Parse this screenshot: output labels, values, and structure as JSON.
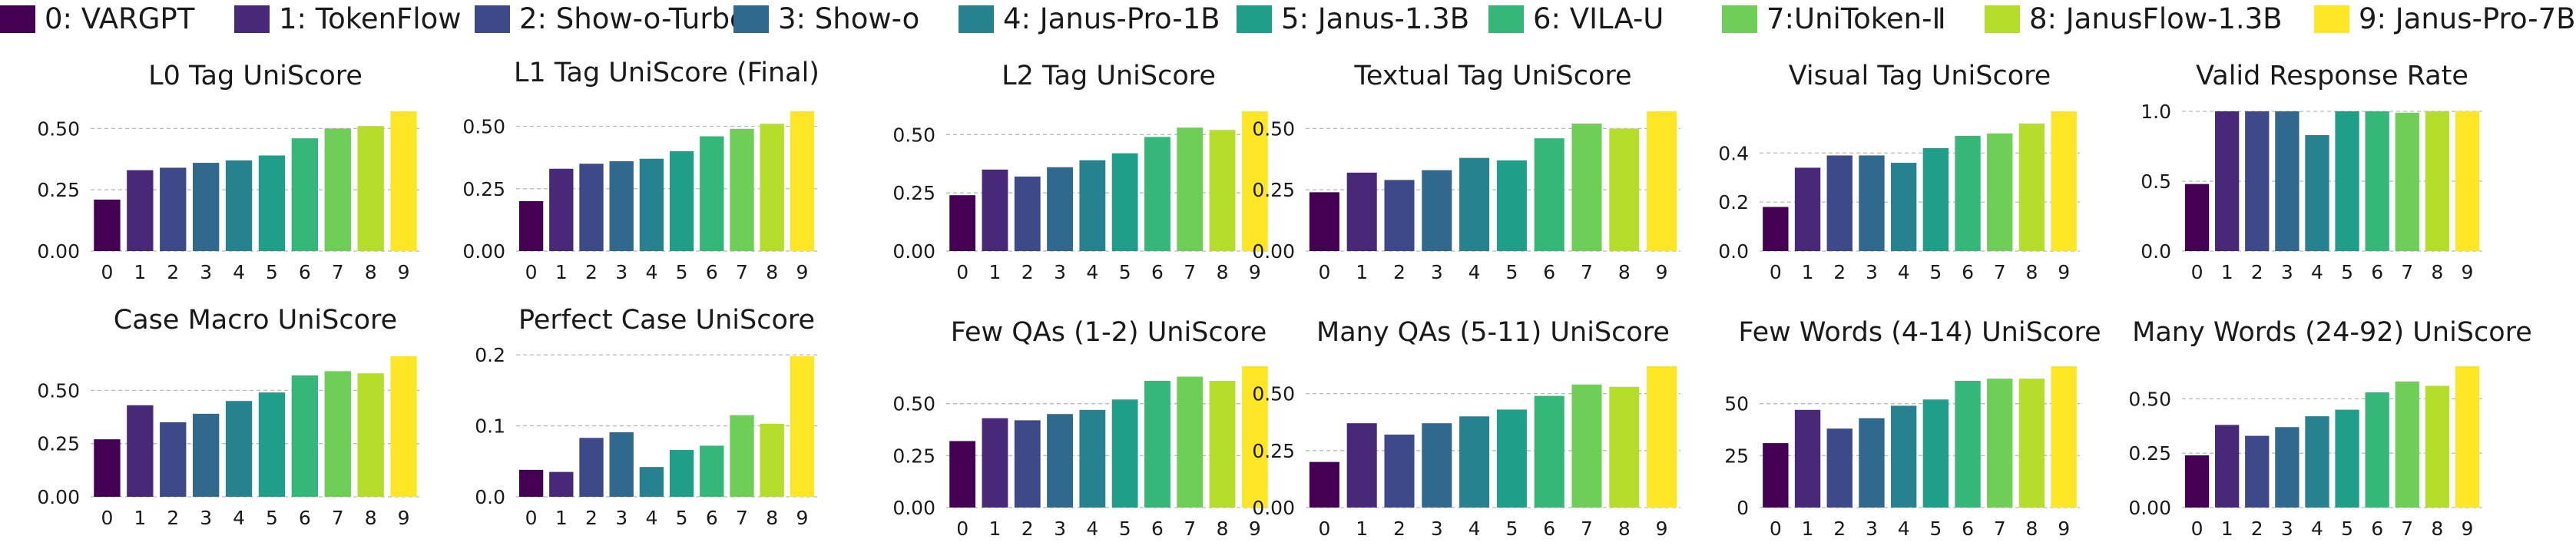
{
  "colors": [
    "#440154",
    "#482878",
    "#3e4989",
    "#31688e",
    "#26828e",
    "#1f9e89",
    "#35b779",
    "#6ece58",
    "#b5de2b",
    "#fde725"
  ],
  "legend": [
    {
      "label": "0: VARGPT"
    },
    {
      "label": "1: TokenFlow"
    },
    {
      "label": "2: Show-o-Turbo"
    },
    {
      "label": "3: Show-o"
    },
    {
      "label": "4: Janus-Pro-1B"
    },
    {
      "label": "5: Janus-1.3B"
    },
    {
      "label": "6: VILA-U"
    },
    {
      "label": "7:UniToken-Ⅱ"
    },
    {
      "label": "8: JanusFlow-1.3B"
    },
    {
      "label": "9: Janus-Pro-7B"
    }
  ],
  "chart_data": [
    {
      "type": "bar",
      "title": "L0 Tag UniScore",
      "categories": [
        "0",
        "1",
        "2",
        "3",
        "4",
        "5",
        "6",
        "7",
        "8",
        "9"
      ],
      "values": [
        0.21,
        0.33,
        0.34,
        0.36,
        0.37,
        0.39,
        0.46,
        0.5,
        0.51,
        0.57
      ],
      "yticks": [
        "0.00",
        "0.25",
        "0.50"
      ],
      "ytick_values": [
        0,
        0.25,
        0.5
      ],
      "ylim": [
        0,
        0.57
      ],
      "grid": true
    },
    {
      "type": "bar",
      "title": "L1 Tag UniScore (Final)",
      "categories": [
        "0",
        "1",
        "2",
        "3",
        "4",
        "5",
        "6",
        "7",
        "8",
        "9"
      ],
      "values": [
        0.2,
        0.33,
        0.35,
        0.36,
        0.37,
        0.4,
        0.46,
        0.49,
        0.51,
        0.56
      ],
      "yticks": [
        "0.00",
        "0.25",
        "0.50"
      ],
      "ytick_values": [
        0,
        0.25,
        0.5
      ],
      "ylim": [
        0,
        0.56
      ],
      "grid": true
    },
    {
      "type": "bar",
      "title": "L2 Tag UniScore",
      "categories": [
        "0",
        "1",
        "2",
        "3",
        "4",
        "5",
        "6",
        "7",
        "8",
        "9"
      ],
      "values": [
        0.24,
        0.35,
        0.32,
        0.36,
        0.39,
        0.42,
        0.49,
        0.53,
        0.52,
        0.6
      ],
      "yticks": [
        "0.00",
        "0.25",
        "0.50"
      ],
      "ytick_values": [
        0,
        0.25,
        0.5
      ],
      "ylim": [
        0,
        0.6
      ],
      "grid": true
    },
    {
      "type": "bar",
      "title": "Textual Tag UniScore",
      "categories": [
        "0",
        "1",
        "2",
        "3",
        "4",
        "5",
        "6",
        "7",
        "8",
        "9"
      ],
      "values": [
        0.24,
        0.32,
        0.29,
        0.33,
        0.38,
        0.37,
        0.46,
        0.52,
        0.5,
        0.57
      ],
      "yticks": [
        "0.00",
        "0.25",
        "0.50"
      ],
      "ytick_values": [
        0,
        0.25,
        0.5
      ],
      "ylim": [
        0,
        0.57
      ],
      "grid": true
    },
    {
      "type": "bar",
      "title": "Visual Tag UniScore",
      "categories": [
        "0",
        "1",
        "2",
        "3",
        "4",
        "5",
        "6",
        "7",
        "8",
        "9"
      ],
      "values": [
        0.18,
        0.34,
        0.39,
        0.39,
        0.36,
        0.42,
        0.47,
        0.48,
        0.52,
        0.57
      ],
      "yticks": [
        "0.0",
        "0.2",
        "0.4"
      ],
      "ytick_values": [
        0,
        0.2,
        0.4
      ],
      "ylim": [
        0,
        0.57
      ],
      "grid": true
    },
    {
      "type": "bar",
      "title": "Valid Response Rate",
      "categories": [
        "0",
        "1",
        "2",
        "3",
        "4",
        "5",
        "6",
        "7",
        "8",
        "9"
      ],
      "values": [
        0.48,
        1.0,
        1.0,
        1.0,
        0.83,
        1.0,
        1.0,
        0.99,
        1.0,
        1.0
      ],
      "yticks": [
        "0.0",
        "0.5",
        "1.0"
      ],
      "ytick_values": [
        0,
        0.5,
        1.0
      ],
      "ylim": [
        0,
        1.0
      ],
      "grid": true
    },
    {
      "type": "bar",
      "title": "Case Macro UniScore",
      "categories": [
        "0",
        "1",
        "2",
        "3",
        "4",
        "5",
        "6",
        "7",
        "8",
        "9"
      ],
      "values": [
        0.27,
        0.43,
        0.35,
        0.39,
        0.45,
        0.49,
        0.57,
        0.59,
        0.58,
        0.66
      ],
      "yticks": [
        "0.00",
        "0.25",
        "0.50"
      ],
      "ytick_values": [
        0,
        0.25,
        0.5
      ],
      "ylim": [
        0,
        0.66
      ],
      "grid": true
    },
    {
      "type": "bar",
      "title": "Perfect Case UniScore",
      "categories": [
        "0",
        "1",
        "2",
        "3",
        "4",
        "5",
        "6",
        "7",
        "8",
        "9"
      ],
      "values": [
        0.038,
        0.035,
        0.083,
        0.091,
        0.042,
        0.066,
        0.072,
        0.115,
        0.103,
        0.198
      ],
      "yticks": [
        "0.0",
        "0.1",
        "0.2"
      ],
      "ytick_values": [
        0,
        0.1,
        0.2
      ],
      "ylim": [
        0,
        0.198
      ],
      "grid": true
    },
    {
      "type": "bar",
      "title": "Few QAs (1-2) UniScore",
      "categories": [
        "0",
        "1",
        "2",
        "3",
        "4",
        "5",
        "6",
        "7",
        "8",
        "9"
      ],
      "values": [
        0.32,
        0.43,
        0.42,
        0.45,
        0.47,
        0.52,
        0.61,
        0.63,
        0.61,
        0.68
      ],
      "yticks": [
        "0.00",
        "0.25",
        "0.50"
      ],
      "ytick_values": [
        0,
        0.25,
        0.5
      ],
      "ylim": [
        0,
        0.68
      ],
      "grid": true
    },
    {
      "type": "bar",
      "title": "Many QAs (5-11) UniScore",
      "categories": [
        "0",
        "1",
        "2",
        "3",
        "4",
        "5",
        "6",
        "7",
        "8",
        "9"
      ],
      "values": [
        0.2,
        0.37,
        0.32,
        0.37,
        0.4,
        0.43,
        0.49,
        0.54,
        0.53,
        0.62
      ],
      "yticks": [
        "0.00",
        "0.25",
        "0.50"
      ],
      "ytick_values": [
        0,
        0.25,
        0.5
      ],
      "ylim": [
        0,
        0.62
      ],
      "grid": true
    },
    {
      "type": "bar",
      "title": "Few Words (4-14) UniScore",
      "categories": [
        "0",
        "1",
        "2",
        "3",
        "4",
        "5",
        "6",
        "7",
        "8",
        "9"
      ],
      "values": [
        31,
        47,
        38,
        43,
        49,
        52,
        61,
        62,
        62,
        68
      ],
      "yticks": [
        "0",
        "25",
        "50"
      ],
      "ytick_values": [
        0,
        25,
        50
      ],
      "ylim": [
        0,
        68
      ],
      "grid": true
    },
    {
      "type": "bar",
      "title": "Many Words (24-92) UniScore",
      "categories": [
        "0",
        "1",
        "2",
        "3",
        "4",
        "5",
        "6",
        "7",
        "8",
        "9"
      ],
      "values": [
        0.24,
        0.38,
        0.33,
        0.37,
        0.42,
        0.45,
        0.53,
        0.58,
        0.56,
        0.65
      ],
      "yticks": [
        "0.00",
        "0.25",
        "0.50"
      ],
      "ytick_values": [
        0,
        0.25,
        0.5
      ],
      "ylim": [
        0,
        0.65
      ],
      "grid": true
    }
  ]
}
